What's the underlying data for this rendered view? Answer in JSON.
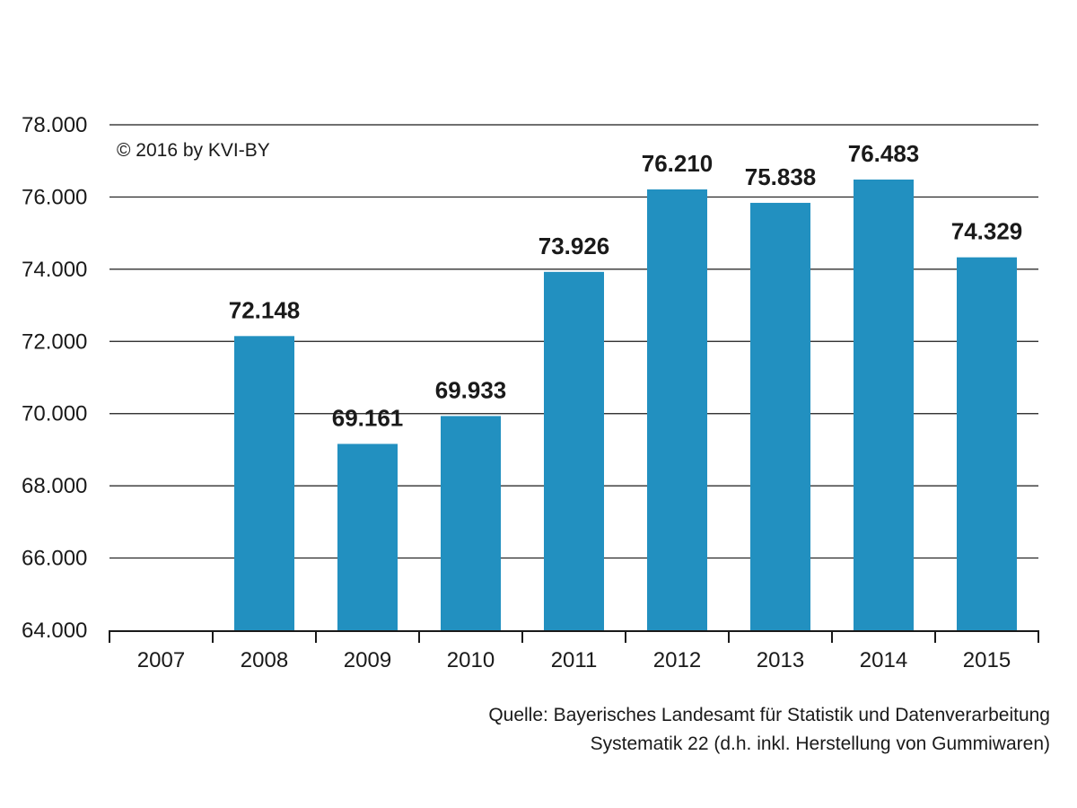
{
  "chart_data": {
    "type": "bar",
    "categories": [
      "2007",
      "2008",
      "2009",
      "2010",
      "2011",
      "2012",
      "2013",
      "2014",
      "2015"
    ],
    "values": [
      null,
      72148,
      69161,
      69933,
      73926,
      76210,
      75838,
      76483,
      74329
    ],
    "data_labels": [
      "",
      "72.148",
      "69.161",
      "69.933",
      "73.926",
      "76.210",
      "75.838",
      "76.483",
      "74.329"
    ],
    "y_ticks": [
      64000,
      66000,
      68000,
      70000,
      72000,
      74000,
      76000,
      78000
    ],
    "y_tick_labels": [
      "64.000",
      "66.000",
      "68.000",
      "70.000",
      "72.000",
      "74.000",
      "76.000",
      "78.000"
    ],
    "ylim": [
      64000,
      78000
    ],
    "grid": true,
    "bar_color": "#2290c0",
    "title": "",
    "xlabel": "",
    "ylabel": ""
  },
  "copyright": "© 2016 by KVI-BY",
  "source": {
    "line1": "Quelle:  Bayerisches Landesamt für Statistik und Datenverarbeitung",
    "line2": "Systematik 22 (d.h. inkl. Herstellung von Gummiwaren)"
  }
}
